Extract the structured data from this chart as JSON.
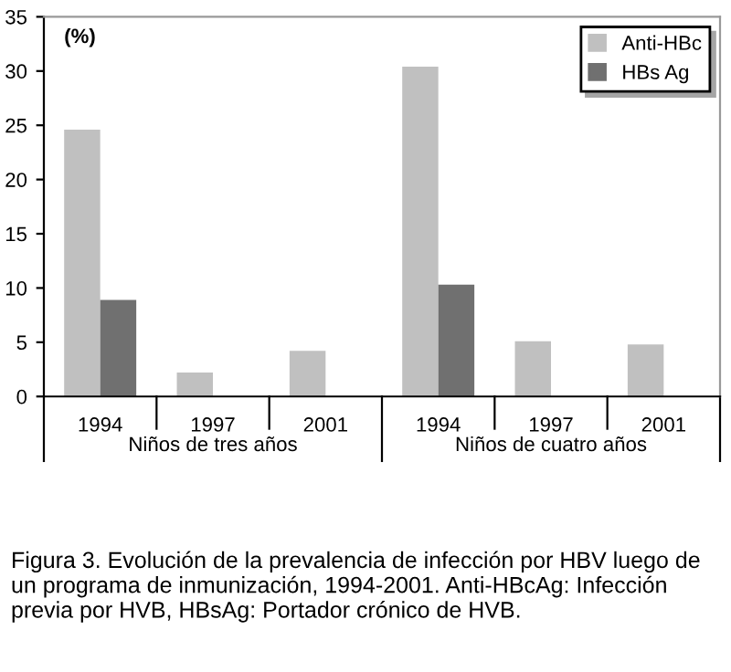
{
  "chart_data": {
    "type": "bar",
    "ylabel": "(%)",
    "categories": [
      "1994",
      "1997",
      "2001",
      "1994",
      "1997",
      "2001"
    ],
    "series": [
      {
        "name": "Anti-HBc",
        "color": "#c0c0c0",
        "values": [
          24.6,
          2.2,
          4.2,
          30.4,
          5.1,
          4.8
        ]
      },
      {
        "name": "HBs Ag",
        "color": "#707070",
        "values": [
          8.9,
          null,
          null,
          10.3,
          null,
          null
        ]
      }
    ],
    "ylim": [
      0,
      35
    ],
    "yticks": [
      0,
      5,
      10,
      15,
      20,
      25,
      30,
      35
    ],
    "grid": false,
    "legend": "top right",
    "annotations": [
      "Niños de tres años",
      "Niños de cuatro años",
      "Figura 3. Evolución de la prevalencia de infección por HBV luego de un programa de inmunización, 1994-2001. Anti-HBcAg: Infección previa por HVB, HBsAg: Portador crónico de HVB."
    ]
  }
}
